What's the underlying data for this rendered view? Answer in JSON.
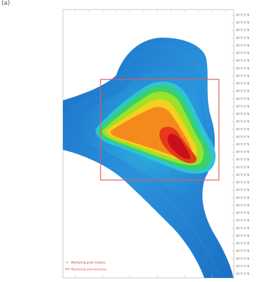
{
  "panel": {
    "label": "(a)"
  },
  "map": {
    "y_ticks": [
      "40°0'0\"N",
      "40°0'0\"N",
      "40°0'0\"N",
      "40°0'0\"N",
      "40°0'0\"N",
      "40°0'0\"N",
      "40°0'0\"N",
      "40°0'0\"N",
      "40°0'0\"N",
      "40°0'0\"N",
      "40°0'0\"N",
      "40°0'0\"N",
      "40°0'0\"N",
      "40°0'0\"N",
      "40°0'0\"N",
      "40°0'0\"N",
      "40°0'0\"N",
      "40°0'0\"N",
      "40°0'0\"N",
      "40°0'0\"N",
      "40°0'0\"N",
      "40°0'0\"N",
      "40°0'0\"N",
      "40°0'0\"N",
      "40°0'0\"N",
      "40°0'0\"N",
      "40°0'0\"N",
      "40°0'0\"N",
      "40°0'0\"N",
      "40°0'0\"N",
      "40°0'0\"N",
      "40°0'0\"N",
      "40°0'0\"N",
      "40°0'0\"N",
      "40°0'0\"N"
    ]
  },
  "legend": {
    "items": [
      {
        "label": "Monitoring point location",
        "color": "#cc3333",
        "marker": "cross-icon"
      },
      {
        "label": "Monitoring area boundary",
        "color": "#e05050",
        "marker": "line-icon"
      }
    ]
  },
  "colors": {
    "frame": "#c9c9c9",
    "boundary_box": "#e15a5a",
    "ramp": [
      "#0d4fa8",
      "#1a72c9",
      "#2a93dd",
      "#2fc3d6",
      "#3ad070",
      "#9be22a",
      "#f5d020",
      "#f58a1c",
      "#e63a1a",
      "#c8101a"
    ]
  }
}
